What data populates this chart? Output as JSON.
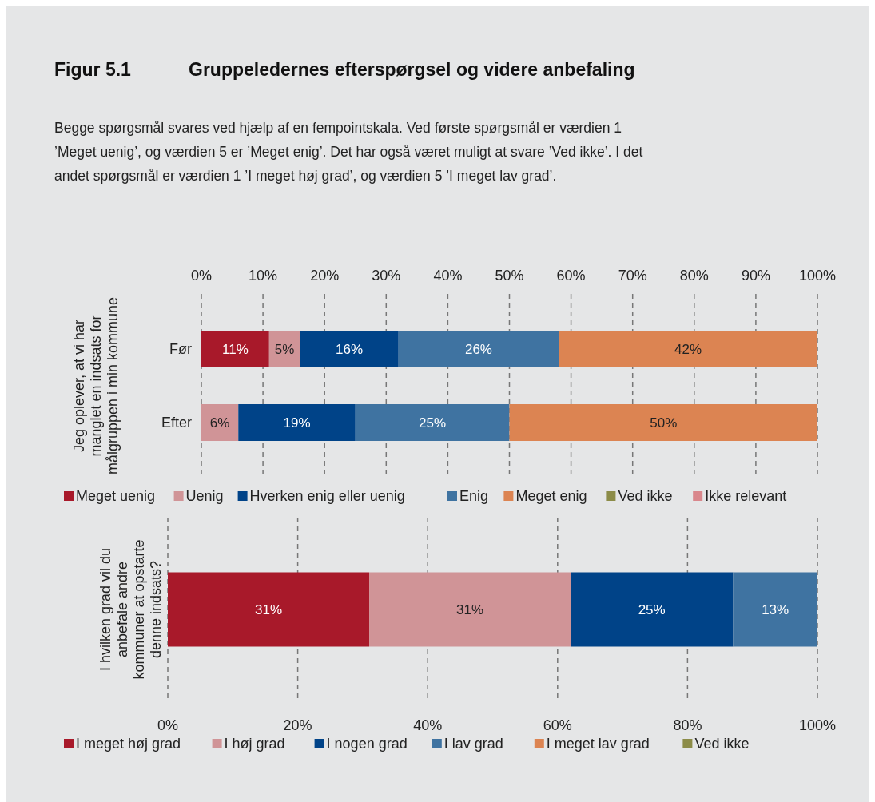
{
  "chart_data": [
    {
      "type": "bar",
      "orientation": "horizontal",
      "stacked": true,
      "title": "Figur 5.1\tGruppeledernes efterspørgsel og videre anbefaling",
      "subtitle": "Begge spørgsmål svares ved hjælp af en fempointskala. Ved første spørgsmål er værdien 1\n’Meget uenig’, og værdien 5 er ’Meget enig’. Det har også været muligt at svare ’Ved ikke’. I det\nandet spørgsmål er værdien 1 ’I meget høj grad’, og værdien 5 ’I meget lav grad’.",
      "ylabel": "Jeg oplever, at vi har manglet en indsats for målgruppen i min kommune",
      "categories": [
        "Før",
        "Efter"
      ],
      "series": [
        {
          "name": "Meget uenig",
          "color": "#a8192a",
          "values": [
            11,
            null
          ],
          "value_labels": [
            "11%",
            null
          ]
        },
        {
          "name": "Uenig",
          "color": "#d09497",
          "values": [
            5,
            6
          ],
          "value_labels": [
            "5%",
            "6%"
          ]
        },
        {
          "name": "Hverken enig eller uenig",
          "color": "#004388",
          "values": [
            16,
            19
          ],
          "value_labels": [
            "16%",
            "19%"
          ]
        },
        {
          "name": "Enig",
          "color": "#3f73a1",
          "values": [
            26,
            25
          ],
          "value_labels": [
            "26%",
            "25%"
          ]
        },
        {
          "name": "Meget enig",
          "color": "#dc8452",
          "values": [
            42,
            50
          ],
          "value_labels": [
            "42%",
            "50%"
          ]
        },
        {
          "name": "Ved ikke",
          "color": "#8c8c48",
          "values": [
            null,
            null
          ]
        },
        {
          "name": "Ikke relevant",
          "color": "#d9878c",
          "values": [
            null,
            null
          ]
        }
      ],
      "xlim": [
        0,
        100
      ],
      "xticks": [
        {
          "value": 0,
          "label": "0%"
        },
        {
          "value": 10,
          "label": "10%"
        },
        {
          "value": 20,
          "label": "20%"
        },
        {
          "value": 30,
          "label": "30%"
        },
        {
          "value": 40,
          "label": "40%"
        },
        {
          "value": 50,
          "label": "50%"
        },
        {
          "value": 60,
          "label": "60%"
        },
        {
          "value": 70,
          "label": "70%"
        },
        {
          "value": 80,
          "label": "80%"
        },
        {
          "value": 90,
          "label": "90%"
        },
        {
          "value": 100,
          "label": "100%"
        }
      ],
      "grid": "x",
      "legend": "bottom"
    },
    {
      "type": "bar",
      "orientation": "horizontal",
      "stacked": true,
      "ylabel": "I hvilken grad vil du anbefale andre kommuner at opstarte denne indsats?",
      "categories": [
        null
      ],
      "series": [
        {
          "name": "I meget høj grad",
          "color": "#a8192a",
          "values": [
            31
          ],
          "value_labels": [
            "31%"
          ]
        },
        {
          "name": "I høj grad",
          "color": "#d09497",
          "values": [
            31
          ],
          "value_labels": [
            "31%"
          ]
        },
        {
          "name": "I nogen grad",
          "color": "#004388",
          "values": [
            25
          ],
          "value_labels": [
            "25%"
          ]
        },
        {
          "name": "I lav grad",
          "color": "#3f73a1",
          "values": [
            13
          ],
          "value_labels": [
            "13%"
          ]
        },
        {
          "name": "I meget lav grad",
          "color": "#dc8452",
          "values": [
            null
          ]
        },
        {
          "name": "Ved ikke",
          "color": "#8c8c48",
          "values": [
            null
          ]
        }
      ],
      "xlim": [
        0,
        100
      ],
      "xticks": [
        {
          "value": 0,
          "label": "0%"
        },
        {
          "value": 20,
          "label": "20%"
        },
        {
          "value": 40,
          "label": "40%"
        },
        {
          "value": 60,
          "label": "60%"
        },
        {
          "value": 80,
          "label": "80%"
        },
        {
          "value": 100,
          "label": "100%"
        }
      ],
      "grid": "x",
      "legend": "bottom"
    }
  ]
}
